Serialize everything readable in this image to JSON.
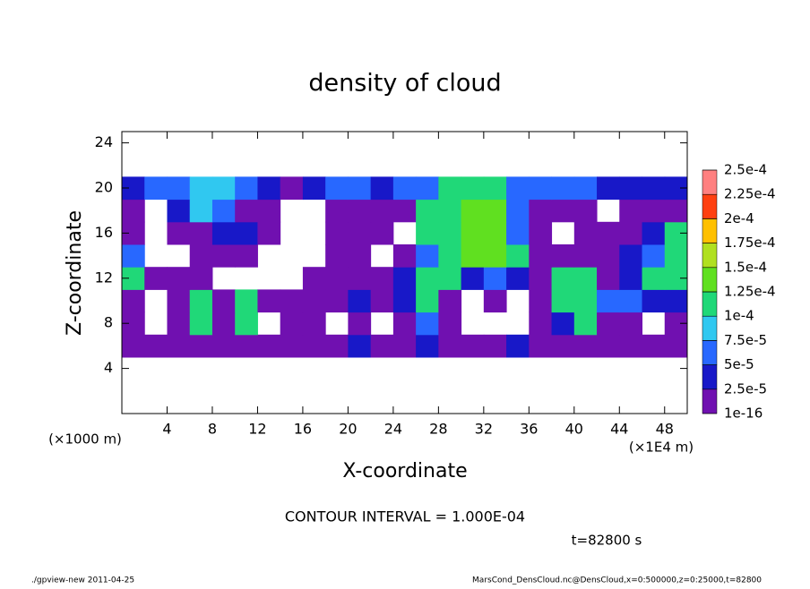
{
  "chart_data": {
    "type": "heatmap",
    "title": "density of cloud",
    "x_label": "X-coordinate",
    "y_label": "Z-coordinate",
    "x_unit": "(×1E4 m)",
    "y_unit": "(×1000 m)",
    "xlim": [
      0,
      50
    ],
    "ylim": [
      0,
      25
    ],
    "xticks": [
      4,
      8,
      12,
      16,
      20,
      24,
      28,
      32,
      36,
      40,
      44,
      48
    ],
    "yticks": [
      4,
      8,
      12,
      16,
      20,
      24
    ],
    "x": [
      1,
      3,
      5,
      7,
      9,
      11,
      13,
      15,
      17,
      19,
      21,
      23,
      25,
      27,
      29,
      31,
      33,
      35,
      37,
      39,
      41,
      43,
      45,
      47,
      49
    ],
    "z": [
      6,
      8,
      10,
      12,
      14,
      16,
      18,
      20
    ],
    "values": [
      [
        1e-05,
        1e-05,
        1e-05,
        1e-05,
        1e-05,
        1e-05,
        1e-05,
        1e-05,
        1e-05,
        1e-05,
        3e-05,
        1e-05,
        1e-05,
        3e-05,
        1e-05,
        1e-05,
        1e-05,
        3e-05,
        1e-05,
        1e-05,
        1e-05,
        1e-05,
        1e-05,
        1e-05,
        1e-05
      ],
      [
        1e-05,
        null,
        1e-05,
        0.00011,
        1e-05,
        0.00011,
        null,
        1e-05,
        1e-05,
        null,
        1e-05,
        null,
        1e-05,
        6e-05,
        1e-05,
        null,
        null,
        null,
        1e-05,
        3e-05,
        0.00011,
        1e-05,
        1e-05,
        null,
        1e-05
      ],
      [
        1e-05,
        null,
        1e-05,
        0.00011,
        1e-05,
        0.00011,
        1e-05,
        1e-05,
        1e-05,
        1e-05,
        3e-05,
        1e-05,
        3e-05,
        0.00011,
        1e-05,
        null,
        1e-05,
        null,
        1e-05,
        0.00011,
        0.00011,
        6e-05,
        6e-05,
        3e-05,
        3e-05
      ],
      [
        0.00011,
        1e-05,
        1e-05,
        1e-05,
        null,
        null,
        null,
        null,
        1e-05,
        1e-05,
        1e-05,
        1e-05,
        3e-05,
        0.00011,
        0.00011,
        3e-05,
        6e-05,
        3e-05,
        1e-05,
        0.00011,
        0.00011,
        1e-05,
        3e-05,
        0.00011,
        0.00011
      ],
      [
        6e-05,
        null,
        null,
        1e-05,
        1e-05,
        1e-05,
        null,
        null,
        null,
        1e-05,
        1e-05,
        null,
        1e-05,
        6e-05,
        0.00011,
        0.00014,
        0.00014,
        0.00011,
        1e-05,
        1e-05,
        1e-05,
        1e-05,
        3e-05,
        6e-05,
        0.00011
      ],
      [
        1e-05,
        null,
        1e-05,
        1e-05,
        3e-05,
        3e-05,
        1e-05,
        null,
        null,
        1e-05,
        1e-05,
        1e-05,
        null,
        0.00011,
        0.00011,
        0.00014,
        0.00014,
        6e-05,
        1e-05,
        null,
        1e-05,
        1e-05,
        1e-05,
        3e-05,
        0.00011
      ],
      [
        1e-05,
        null,
        3e-05,
        8e-05,
        6e-05,
        1e-05,
        1e-05,
        null,
        null,
        1e-05,
        1e-05,
        1e-05,
        1e-05,
        0.00011,
        0.00011,
        0.00014,
        0.00014,
        6e-05,
        1e-05,
        1e-05,
        1e-05,
        null,
        1e-05,
        1e-05,
        1e-05
      ],
      [
        3e-05,
        6e-05,
        6e-05,
        8e-05,
        8e-05,
        6e-05,
        3e-05,
        1e-05,
        3e-05,
        6e-05,
        6e-05,
        3e-05,
        6e-05,
        6e-05,
        0.00011,
        0.00011,
        0.00011,
        6e-05,
        6e-05,
        6e-05,
        6e-05,
        3e-05,
        3e-05,
        3e-05,
        3e-05
      ]
    ],
    "levels": [
      {
        "value": 1e-16,
        "label": "1e-16"
      },
      {
        "value": 2.5e-05,
        "label": "2.5e-5"
      },
      {
        "value": 5e-05,
        "label": "5e-5"
      },
      {
        "value": 7.5e-05,
        "label": "7.5e-5"
      },
      {
        "value": 0.0001,
        "label": "1e-4"
      },
      {
        "value": 0.000125,
        "label": "1.25e-4"
      },
      {
        "value": 0.00015,
        "label": "1.5e-4"
      },
      {
        "value": 0.000175,
        "label": "1.75e-4"
      },
      {
        "value": 0.0002,
        "label": "2e-4"
      },
      {
        "value": 0.000225,
        "label": "2.25e-4"
      },
      {
        "value": 0.00025,
        "label": "2.5e-4"
      }
    ],
    "colors": [
      "#7010b0",
      "#1818c8",
      "#2868ff",
      "#30c8f0",
      "#20d878",
      "#60e020",
      "#b0e020",
      "#ffc000",
      "#ff4010",
      "#ff8080"
    ],
    "contour_interval": "CONTOUR INTERVAL = 1.000E-04",
    "time": "t=82800 s",
    "footer_left": "./gpview-new  2011-04-25",
    "footer_right": "MarsCond_DensCloud.nc@DensCloud,x=0:500000,z=0:25000,t=82800"
  }
}
